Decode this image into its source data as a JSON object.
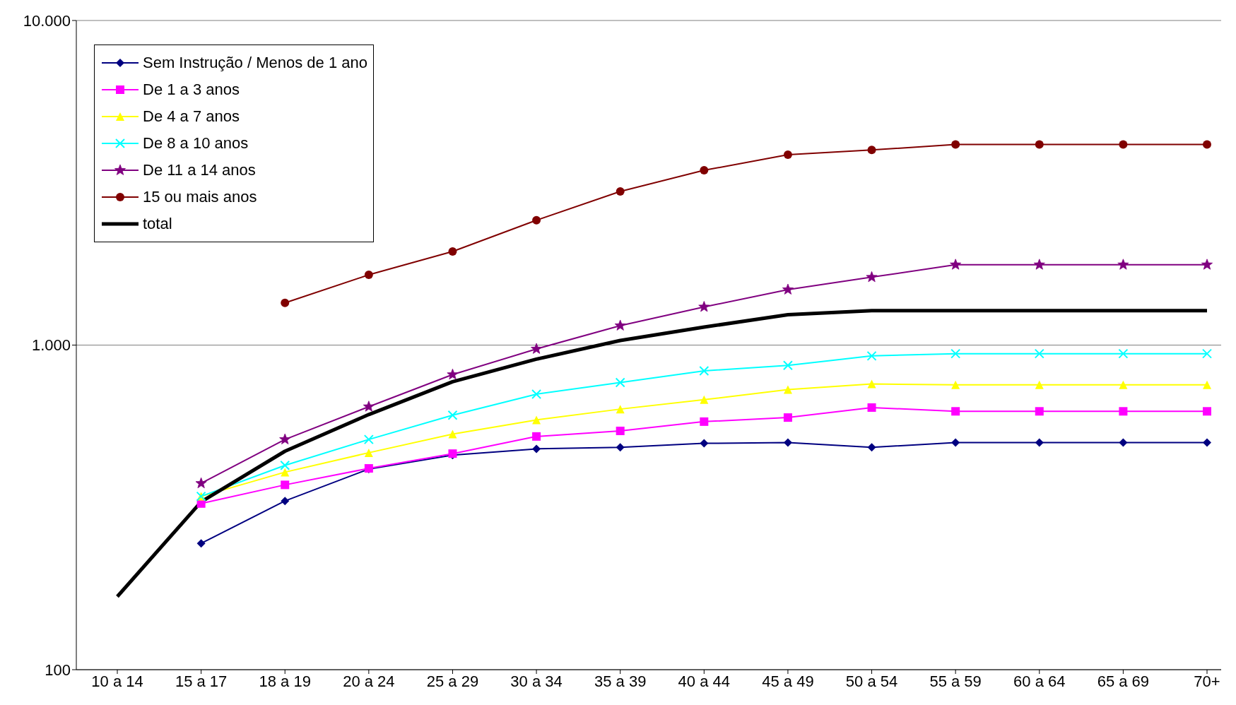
{
  "chart_data": {
    "type": "line",
    "categories": [
      "10 a 14",
      "15 a 17",
      "18 a 19",
      "20 a 24",
      "25 a 29",
      "30 a 34",
      "35 a 39",
      "40 a 44",
      "45 a 49",
      "50 a 54",
      "55 a 59",
      "60 a 64",
      "65 a 69",
      "70+"
    ],
    "log": "y",
    "ylim": [
      100,
      10000
    ],
    "yticks": [
      {
        "value": 100,
        "label": "100"
      },
      {
        "value": 1000,
        "label": "1.000"
      },
      {
        "value": 10000,
        "label": "10.000"
      }
    ],
    "grid": "y",
    "legend": "top left",
    "series": [
      {
        "name": "Sem Instrução / Menos de 1 ano",
        "color": "#000080",
        "marker": "diamond",
        "values": [
          null,
          245,
          331,
          415,
          458,
          479,
          484,
          498,
          501,
          484,
          501,
          501,
          501,
          501
        ]
      },
      {
        "name": "De 1 a 3 anos",
        "color": "#ff00ff",
        "marker": "square",
        "values": [
          null,
          325,
          371,
          417,
          463,
          523,
          544,
          581,
          598,
          642,
          625,
          625,
          625,
          625
        ]
      },
      {
        "name": "De 4 a 7 anos",
        "color": "#ffff00",
        "marker": "triangle",
        "values": [
          null,
          342,
          406,
          466,
          532,
          588,
          635,
          679,
          729,
          759,
          754,
          754,
          754,
          754
        ]
      },
      {
        "name": "De 8 a 10 anos",
        "color": "#00ffff",
        "marker": "cross",
        "values": [
          null,
          342,
          426,
          512,
          608,
          706,
          767,
          833,
          866,
          926,
          941,
          941,
          941,
          941
        ]
      },
      {
        "name": "De 11 a 14 anos",
        "color": "#800080",
        "marker": "star",
        "values": [
          null,
          375,
          512,
          646,
          811,
          973,
          1148,
          1311,
          1482,
          1619,
          1768,
          1768,
          1768,
          1768
        ]
      },
      {
        "name": "15 ou mais anos",
        "color": "#800000",
        "marker": "circle",
        "values": [
          null,
          null,
          1349,
          1646,
          1943,
          2425,
          2975,
          3455,
          3860,
          3990,
          4150,
          4150,
          4150,
          4150
        ]
      },
      {
        "name": "total",
        "color": "#000000",
        "marker": "none",
        "values": [
          168,
          329,
          471,
          611,
          771,
          905,
          1033,
          1136,
          1241,
          1276,
          1276,
          1276,
          1276,
          1276
        ]
      }
    ]
  }
}
